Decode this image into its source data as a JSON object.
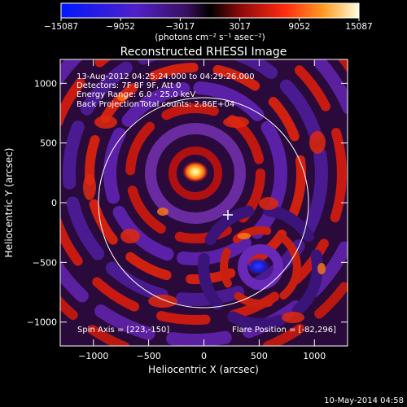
{
  "colorbar": {
    "ticks": [
      "-15087",
      "-9052",
      "-3017",
      "3017",
      "9052",
      "15087"
    ],
    "unit": "(photons cm⁻² s⁻¹ asec⁻²)"
  },
  "chart_data": {
    "type": "heatmap",
    "title": "Reconstructed RHESSI Image",
    "xlabel": "Heliocentric X (arcsec)",
    "ylabel": "Heliocentric Y (arcsec)",
    "xlim": [
      -1300,
      1300
    ],
    "ylim": [
      -1200,
      1200
    ],
    "xticks": [
      -1000,
      -500,
      0,
      500,
      1000
    ],
    "yticks": [
      -1000,
      -500,
      0,
      500,
      1000
    ],
    "clim": [
      -15087,
      15087
    ],
    "annotations": [
      "13-Aug-2012 04:25:24.000 to 04:29:26.000",
      "Detectors: 7F 8F 9F, Att 0",
      "Energy Range: 6.0 - 25.0 keV",
      "Back Projection",
      "Total counts: 2.86E+04"
    ],
    "spin_axis_label": "Spin Axis = [223,-150]",
    "flare_position_label": "Flare Position = [-82,296]",
    "solar_limb": {
      "center": [
        0,
        0
      ],
      "radius": 950
    },
    "cross_marker": [
      223,
      -150
    ],
    "sources": [
      {
        "x": -82,
        "y": 296,
        "value": 15087
      },
      {
        "x": 500,
        "y": -580,
        "value": -15087
      }
    ]
  },
  "timestamp": "10-May-2014 04:58"
}
